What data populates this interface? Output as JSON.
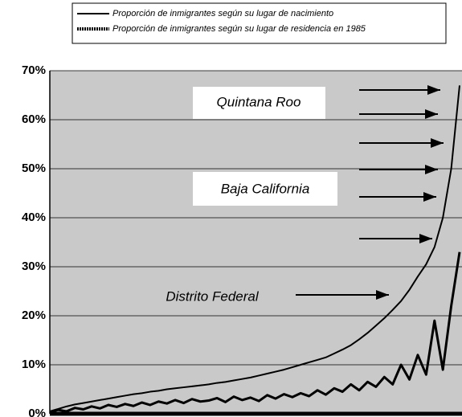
{
  "chart_data": {
    "type": "line",
    "categories": [
      null,
      null,
      null,
      null,
      null,
      null,
      null,
      null,
      null,
      null,
      null,
      null,
      null,
      null,
      null,
      null,
      null,
      null,
      null,
      null,
      null,
      null,
      null,
      null,
      null,
      null,
      null,
      null,
      null,
      null,
      null,
      null,
      null,
      null,
      null,
      null,
      null,
      null,
      null,
      null,
      null,
      null,
      null,
      null,
      null,
      null,
      null,
      null,
      null,
      null
    ],
    "series": [
      {
        "name": "Proporción de inmigrantes según su lugar de nacimiento",
        "color": "#000000",
        "values": [
          0.5,
          1,
          1.5,
          1.9,
          2.2,
          2.5,
          2.8,
          3.1,
          3.4,
          3.7,
          4,
          4.2,
          4.5,
          4.7,
          5,
          5.2,
          5.4,
          5.6,
          5.8,
          6,
          6.3,
          6.5,
          6.8,
          7.1,
          7.4,
          7.8,
          8.2,
          8.6,
          9.0,
          9.5,
          10,
          10.5,
          11,
          11.5,
          12.3,
          13.1,
          14,
          15.2,
          16.5,
          18,
          19.5,
          21.2,
          23,
          25.3,
          28,
          30.5,
          34,
          40,
          50,
          67
        ]
      },
      {
        "name": "Proporción de inmigrantes según su lugar de residencia en 1985",
        "color": "#000000",
        "values": [
          0.3,
          0.8,
          0.5,
          1.2,
          0.9,
          1.5,
          1.1,
          1.8,
          1.4,
          2,
          1.6,
          2.3,
          1.8,
          2.5,
          2.1,
          2.8,
          2.2,
          3,
          2.5,
          2.7,
          3.2,
          2.4,
          3.5,
          2.8,
          3.3,
          2.6,
          3.8,
          3.1,
          4,
          3.4,
          4.2,
          3.6,
          4.8,
          3.9,
          5.2,
          4.5,
          6,
          4.8,
          6.5,
          5.5,
          7.5,
          6,
          10,
          7,
          12,
          8,
          19,
          9,
          22,
          33
        ]
      }
    ],
    "ylim": [
      0,
      70
    ],
    "yticks": [
      {
        "value": 0,
        "label": "0%"
      },
      {
        "value": 10,
        "label": "10%"
      },
      {
        "value": 20,
        "label": "20%"
      },
      {
        "value": 30,
        "label": "30%"
      },
      {
        "value": 40,
        "label": "40%"
      },
      {
        "value": 50,
        "label": "50%"
      },
      {
        "value": 60,
        "label": "60%"
      },
      {
        "value": 70,
        "label": "70%"
      }
    ],
    "grid": true,
    "annotations": [
      "Quintana Roo",
      "Baja California",
      "Distrito Federal"
    ]
  }
}
